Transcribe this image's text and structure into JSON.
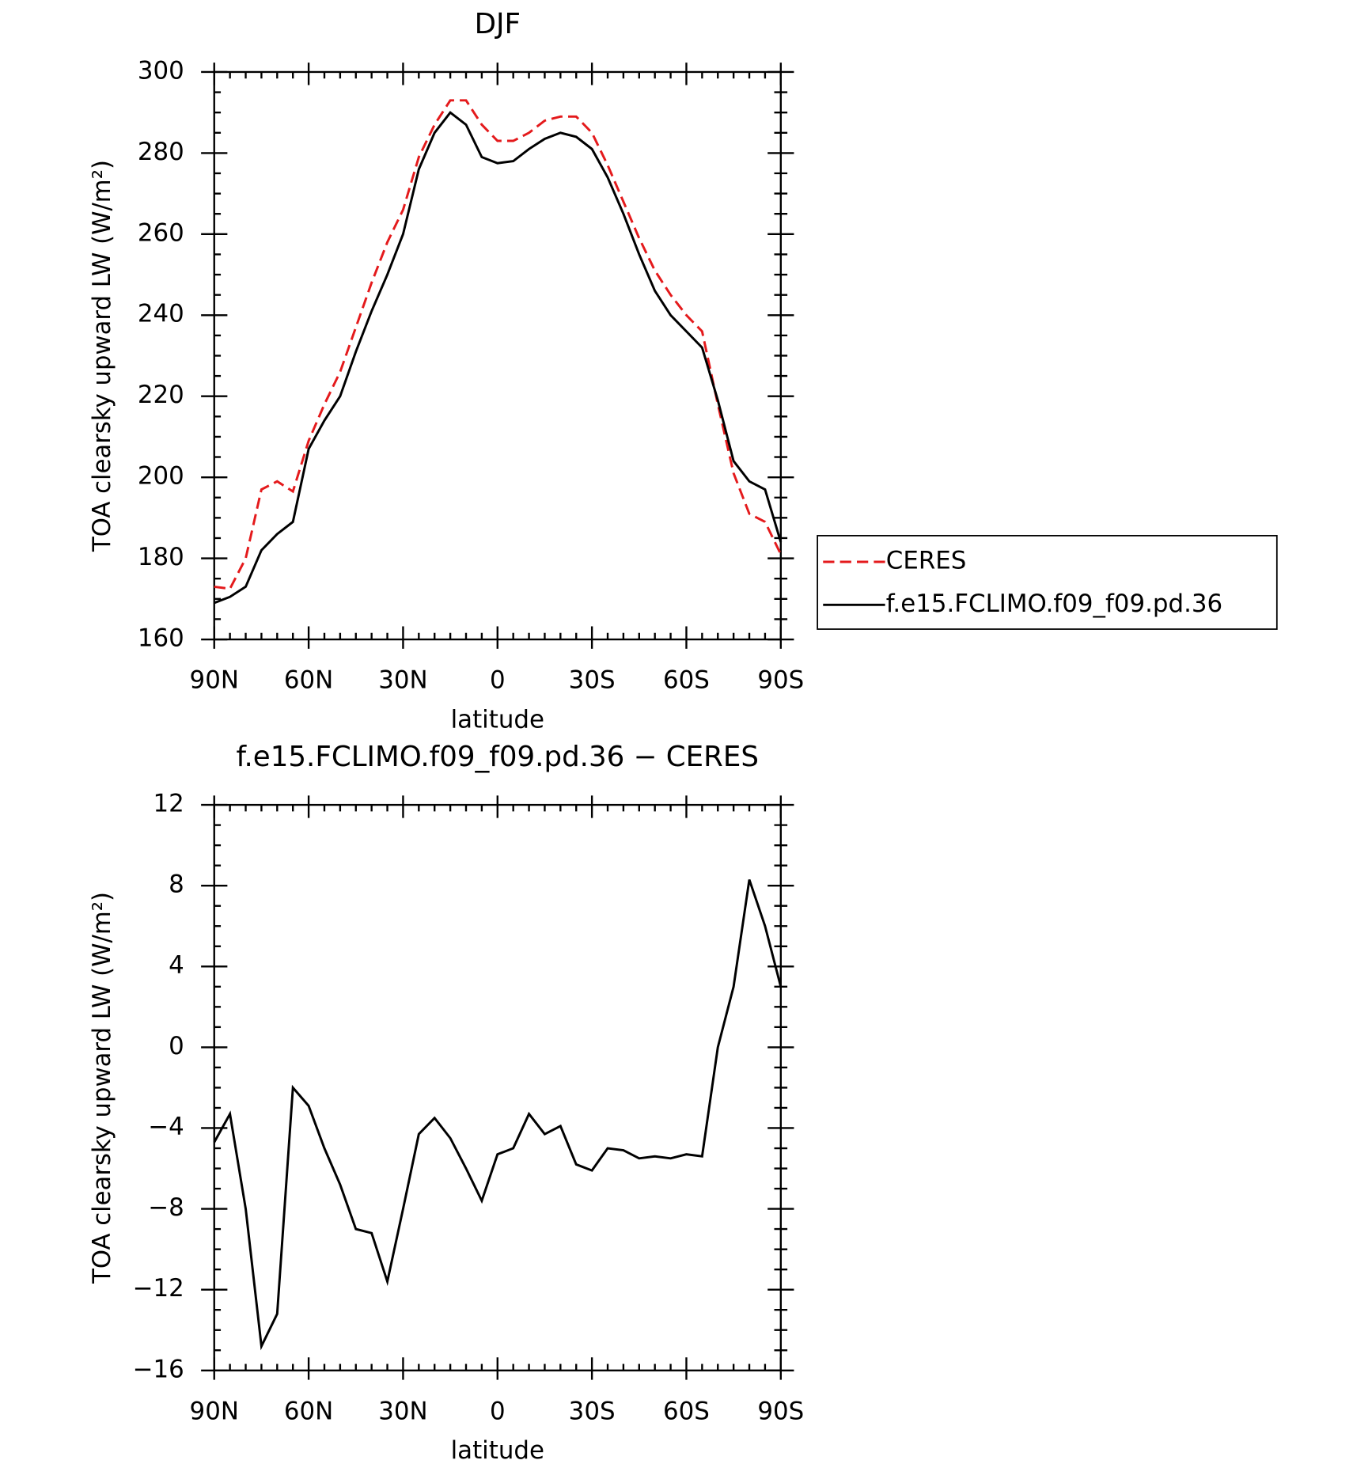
{
  "chart_data": [
    {
      "type": "line",
      "title": "DJF",
      "xlabel": "latitude",
      "ylabel": "TOA clearsky upward LW (W/m²)",
      "x": [
        90,
        85,
        80,
        75,
        70,
        65,
        60,
        55,
        50,
        45,
        40,
        35,
        30,
        25,
        20,
        15,
        10,
        5,
        0,
        -5,
        -10,
        -15,
        -20,
        -25,
        -30,
        -35,
        -40,
        -45,
        -50,
        -55,
        -60,
        -65,
        -70,
        -75,
        -80,
        -85,
        -90
      ],
      "xlim": [
        90,
        -90
      ],
      "xticks": [
        {
          "value": 90,
          "label": "90N"
        },
        {
          "value": 60,
          "label": "60N"
        },
        {
          "value": 30,
          "label": "30N"
        },
        0,
        {
          "value": -30,
          "label": "30S"
        },
        {
          "value": -60,
          "label": "60S"
        },
        {
          "value": -90,
          "label": "90S"
        }
      ],
      "ylim": [
        160,
        300
      ],
      "yticks": [
        160,
        180,
        200,
        220,
        240,
        260,
        280,
        300
      ],
      "legend": "outside right",
      "series": [
        {
          "name": "CERES",
          "color": "#e41a1c",
          "dash": true,
          "values": [
            173,
            172.5,
            180,
            197,
            199,
            196.5,
            209,
            218,
            226,
            237,
            248,
            258,
            266,
            279,
            287,
            293,
            293,
            287,
            283,
            283,
            285,
            288,
            289,
            289,
            285,
            277,
            268,
            259,
            251,
            245,
            240,
            236,
            218,
            201,
            191,
            189,
            181
          ]
        },
        {
          "name": "f.e15.FCLIMO.f09_f09.pd.36",
          "color": "#000000",
          "dash": false,
          "values": [
            169,
            170.5,
            173,
            182,
            186,
            189,
            207,
            214,
            220,
            231,
            241,
            250,
            260,
            276,
            285,
            290,
            287,
            279,
            277.5,
            278,
            281,
            283.5,
            285,
            284,
            281,
            274,
            265,
            255,
            246,
            240,
            236,
            232,
            219,
            204,
            199,
            197,
            184
          ]
        }
      ]
    },
    {
      "type": "line",
      "title": "f.e15.FCLIMO.f09_f09.pd.36 − CERES",
      "xlabel": "latitude",
      "ylabel": "TOA clearsky upward LW (W/m²)",
      "x": [
        90,
        85,
        80,
        75,
        70,
        65,
        60,
        55,
        50,
        45,
        40,
        35,
        30,
        25,
        20,
        15,
        10,
        5,
        0,
        -5,
        -10,
        -15,
        -20,
        -25,
        -30,
        -35,
        -40,
        -45,
        -50,
        -55,
        -60,
        -65,
        -70,
        -75,
        -80,
        -85,
        -90
      ],
      "xlim": [
        90,
        -90
      ],
      "xticks": [
        {
          "value": 90,
          "label": "90N"
        },
        {
          "value": 60,
          "label": "60N"
        },
        {
          "value": 30,
          "label": "30N"
        },
        0,
        {
          "value": -30,
          "label": "30S"
        },
        {
          "value": -60,
          "label": "60S"
        },
        {
          "value": -90,
          "label": "90S"
        }
      ],
      "ylim": [
        -16,
        12
      ],
      "yticks": [
        {
          "value": -16,
          "label": "−16"
        },
        {
          "value": -12,
          "label": "−12"
        },
        {
          "value": -8,
          "label": "−8"
        },
        {
          "value": -4,
          "label": "−4"
        },
        0,
        4,
        8,
        12
      ],
      "series": [
        {
          "color": "#000000",
          "dash": false,
          "values": [
            -4.7,
            -3.3,
            -8,
            -14.8,
            -13.2,
            -2,
            -2.9,
            -5,
            -6.8,
            -9,
            -9.2,
            -11.6,
            -8,
            -4.3,
            -3.5,
            -4.5,
            -6,
            -7.6,
            -5.3,
            -5,
            -3.3,
            -4.3,
            -3.9,
            -5.8,
            -6.1,
            -5,
            -5.1,
            -5.5,
            -5.4,
            -5.5,
            -5.3,
            -5.4,
            0,
            3,
            8.3,
            6,
            3
          ]
        }
      ]
    }
  ]
}
